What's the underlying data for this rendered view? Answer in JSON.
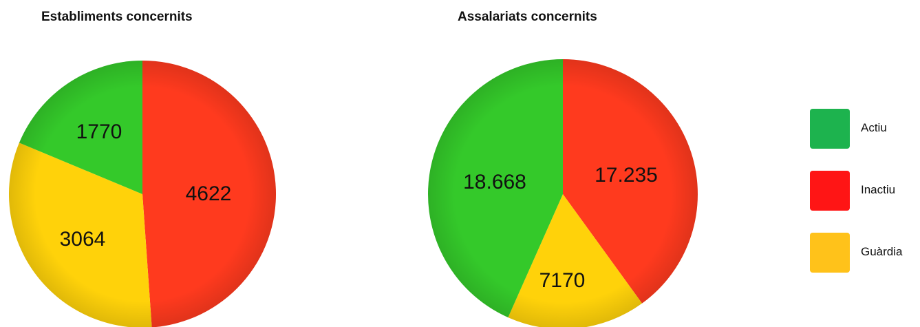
{
  "chart_data": [
    {
      "type": "pie",
      "title": "Establiments concernits",
      "slices": [
        {
          "category": "Inactiu",
          "value": 4622,
          "label": "4622"
        },
        {
          "category": "Guàrdia",
          "value": 3064,
          "label": "3064"
        },
        {
          "category": "Actiu",
          "value": 1770,
          "label": "1770"
        }
      ]
    },
    {
      "type": "pie",
      "title": "Assalariats concernits",
      "slices": [
        {
          "category": "Inactiu",
          "value": 17235,
          "label": "17.235"
        },
        {
          "category": "Guàrdia",
          "value": 7170,
          "label": "7170"
        },
        {
          "category": "Actiu",
          "value": 18668,
          "label": "18.668"
        }
      ]
    }
  ],
  "legend": [
    {
      "category": "Actiu",
      "color": "#1db34e"
    },
    {
      "category": "Inactiu",
      "color": "#ff1515"
    },
    {
      "category": "Guàrdia",
      "color": "#ffc21a"
    }
  ],
  "slice_colors": {
    "Actiu": "#34c92a",
    "Inactiu": "#ff3a1e",
    "Guàrdia": "#ffd20a"
  },
  "legend_position": "right"
}
